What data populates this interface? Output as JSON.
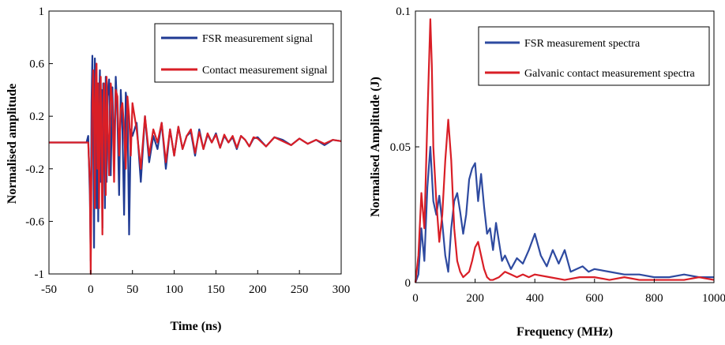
{
  "chart_data": [
    {
      "type": "line",
      "title": "",
      "xlabel": "Time (ns)",
      "ylabel": "Normalised amplitude",
      "xlim": [
        -50,
        300
      ],
      "ylim": [
        -1,
        1
      ],
      "xticks": [
        -50,
        0,
        50,
        100,
        150,
        200,
        250,
        300
      ],
      "xtick_labels": [
        "-50",
        "0",
        "50",
        "100",
        "150",
        "200",
        "250",
        "300"
      ],
      "yticks": [
        1,
        0.6,
        0.2,
        -0.2,
        -0.6,
        -1
      ],
      "ytick_labels": [
        "1",
        "0.6",
        "0.2",
        "-0.2",
        "-0.6",
        "-1"
      ],
      "grid": false,
      "legend_position": "top-right",
      "series": [
        {
          "name": "FSR measurement signal",
          "color": "#1f3a93",
          "x": [
            -50,
            -5,
            -3,
            -1,
            0,
            1,
            2,
            3,
            4,
            5,
            6,
            7,
            8,
            9,
            10,
            11,
            12,
            13,
            14,
            15,
            16,
            17,
            18,
            19,
            20,
            22,
            24,
            26,
            28,
            30,
            32,
            34,
            36,
            38,
            40,
            42,
            44,
            46,
            48,
            50,
            55,
            60,
            65,
            70,
            75,
            80,
            85,
            90,
            95,
            100,
            105,
            110,
            115,
            120,
            125,
            130,
            135,
            140,
            145,
            150,
            155,
            160,
            165,
            170,
            175,
            180,
            185,
            190,
            195,
            200,
            210,
            220,
            230,
            240,
            250,
            260,
            270,
            280,
            290,
            300
          ],
          "y": [
            0,
            0,
            0.05,
            -0.4,
            -0.9,
            0.3,
            0.66,
            0.1,
            -0.8,
            0.64,
            0.2,
            -0.5,
            0.45,
            -0.6,
            0.3,
            0.55,
            -0.3,
            0.4,
            -0.65,
            0.45,
            0.1,
            -0.5,
            0.5,
            -0.3,
            0.35,
            0.48,
            -0.25,
            0.42,
            -0.15,
            0.5,
            0.2,
            -0.4,
            0.4,
            0.1,
            -0.55,
            0.38,
            0.28,
            -0.7,
            0.1,
            0.05,
            0.15,
            -0.3,
            0.2,
            -0.15,
            0.05,
            -0.05,
            0.15,
            -0.2,
            0.1,
            -0.1,
            0.12,
            -0.05,
            0.05,
            0.08,
            -0.1,
            0.1,
            -0.05,
            0.06,
            0.0,
            0.07,
            -0.04,
            0.05,
            0.0,
            0.04,
            -0.05,
            0.05,
            0.02,
            -0.03,
            0.03,
            0.04,
            -0.03,
            0.04,
            0.02,
            -0.02,
            0.03,
            -0.01,
            0.02,
            -0.02,
            0.02,
            0.01
          ]
        },
        {
          "name": "Contact measurement signal",
          "color": "#d91e26",
          "x": [
            -50,
            -5,
            -3,
            -1,
            0,
            1,
            2,
            3,
            4,
            5,
            6,
            7,
            8,
            9,
            10,
            11,
            12,
            13,
            14,
            15,
            16,
            17,
            18,
            19,
            20,
            22,
            24,
            26,
            28,
            30,
            32,
            34,
            36,
            38,
            40,
            42,
            44,
            46,
            48,
            50,
            55,
            60,
            65,
            70,
            75,
            80,
            85,
            90,
            95,
            100,
            105,
            110,
            115,
            120,
            125,
            130,
            135,
            140,
            145,
            150,
            155,
            160,
            165,
            170,
            175,
            180,
            185,
            190,
            195,
            200,
            210,
            220,
            230,
            240,
            250,
            260,
            270,
            280,
            290,
            300
          ],
          "y": [
            0,
            0,
            0.0,
            -0.3,
            -1.0,
            -0.2,
            0.35,
            0.55,
            0.2,
            -0.5,
            0.5,
            0.6,
            -0.2,
            0.45,
            -0.5,
            0.2,
            0.5,
            -0.1,
            -0.7,
            0.3,
            0.45,
            0.1,
            -0.4,
            0.5,
            0.25,
            -0.25,
            0.45,
            0.3,
            -0.3,
            0.4,
            0.35,
            -0.1,
            0.25,
            0.3,
            0.1,
            -0.2,
            0.35,
            0.2,
            -0.1,
            0.3,
            0.1,
            -0.2,
            0.2,
            -0.1,
            0.1,
            0.0,
            0.15,
            -0.15,
            0.1,
            -0.1,
            0.12,
            -0.05,
            0.05,
            0.1,
            -0.08,
            0.08,
            -0.05,
            0.07,
            0.0,
            0.06,
            -0.04,
            0.06,
            0.0,
            0.05,
            -0.04,
            0.05,
            0.02,
            -0.03,
            0.04,
            0.03,
            -0.03,
            0.04,
            0.01,
            -0.02,
            0.03,
            -0.01,
            0.02,
            -0.01,
            0.02,
            0.01
          ]
        }
      ]
    },
    {
      "type": "line",
      "title": "",
      "xlabel": "Frequency (MHz)",
      "ylabel": "Normalised Amplitude (J)",
      "xlim": [
        0,
        1000
      ],
      "ylim": [
        0,
        0.1
      ],
      "xticks": [
        0,
        200,
        400,
        600,
        800,
        1000
      ],
      "xtick_labels": [
        "0",
        "200",
        "400",
        "600",
        "800",
        "1000"
      ],
      "yticks": [
        0.1,
        0.05,
        0
      ],
      "ytick_labels": [
        "0.1",
        "0.05",
        "0"
      ],
      "grid": false,
      "legend_position": "top-right",
      "series": [
        {
          "name": "FSR measurement spectra",
          "color": "#2e4aa0",
          "x": [
            0,
            10,
            20,
            30,
            40,
            50,
            60,
            70,
            80,
            90,
            100,
            110,
            120,
            130,
            140,
            150,
            160,
            170,
            180,
            190,
            200,
            210,
            220,
            230,
            240,
            250,
            260,
            270,
            280,
            290,
            300,
            320,
            340,
            360,
            380,
            400,
            420,
            440,
            460,
            480,
            500,
            520,
            540,
            560,
            580,
            600,
            650,
            700,
            750,
            800,
            850,
            900,
            950,
            1000
          ],
          "y": [
            0,
            0.003,
            0.02,
            0.008,
            0.035,
            0.05,
            0.03,
            0.025,
            0.032,
            0.022,
            0.01,
            0.004,
            0.02,
            0.03,
            0.033,
            0.026,
            0.018,
            0.025,
            0.038,
            0.042,
            0.044,
            0.03,
            0.04,
            0.028,
            0.018,
            0.02,
            0.012,
            0.022,
            0.015,
            0.008,
            0.01,
            0.005,
            0.009,
            0.007,
            0.012,
            0.018,
            0.01,
            0.006,
            0.012,
            0.007,
            0.012,
            0.004,
            0.005,
            0.006,
            0.004,
            0.005,
            0.004,
            0.003,
            0.003,
            0.002,
            0.002,
            0.003,
            0.002,
            0.002
          ]
        },
        {
          "name": "Galvanic contact measurement spectra",
          "color": "#d91e26",
          "x": [
            0,
            10,
            20,
            30,
            40,
            50,
            55,
            60,
            70,
            80,
            90,
            100,
            110,
            120,
            130,
            140,
            150,
            160,
            170,
            180,
            190,
            200,
            210,
            220,
            230,
            240,
            250,
            260,
            280,
            300,
            320,
            340,
            360,
            380,
            400,
            450,
            500,
            550,
            600,
            650,
            700,
            750,
            800,
            850,
            900,
            950,
            1000
          ],
          "y": [
            0,
            0.01,
            0.033,
            0.02,
            0.06,
            0.097,
            0.08,
            0.05,
            0.03,
            0.015,
            0.025,
            0.045,
            0.06,
            0.045,
            0.02,
            0.008,
            0.004,
            0.002,
            0.003,
            0.004,
            0.008,
            0.013,
            0.015,
            0.01,
            0.005,
            0.002,
            0.001,
            0.001,
            0.002,
            0.004,
            0.003,
            0.002,
            0.003,
            0.002,
            0.003,
            0.002,
            0.001,
            0.002,
            0.002,
            0.001,
            0.002,
            0.001,
            0.001,
            0.001,
            0.001,
            0.002,
            0.001
          ]
        }
      ]
    }
  ]
}
